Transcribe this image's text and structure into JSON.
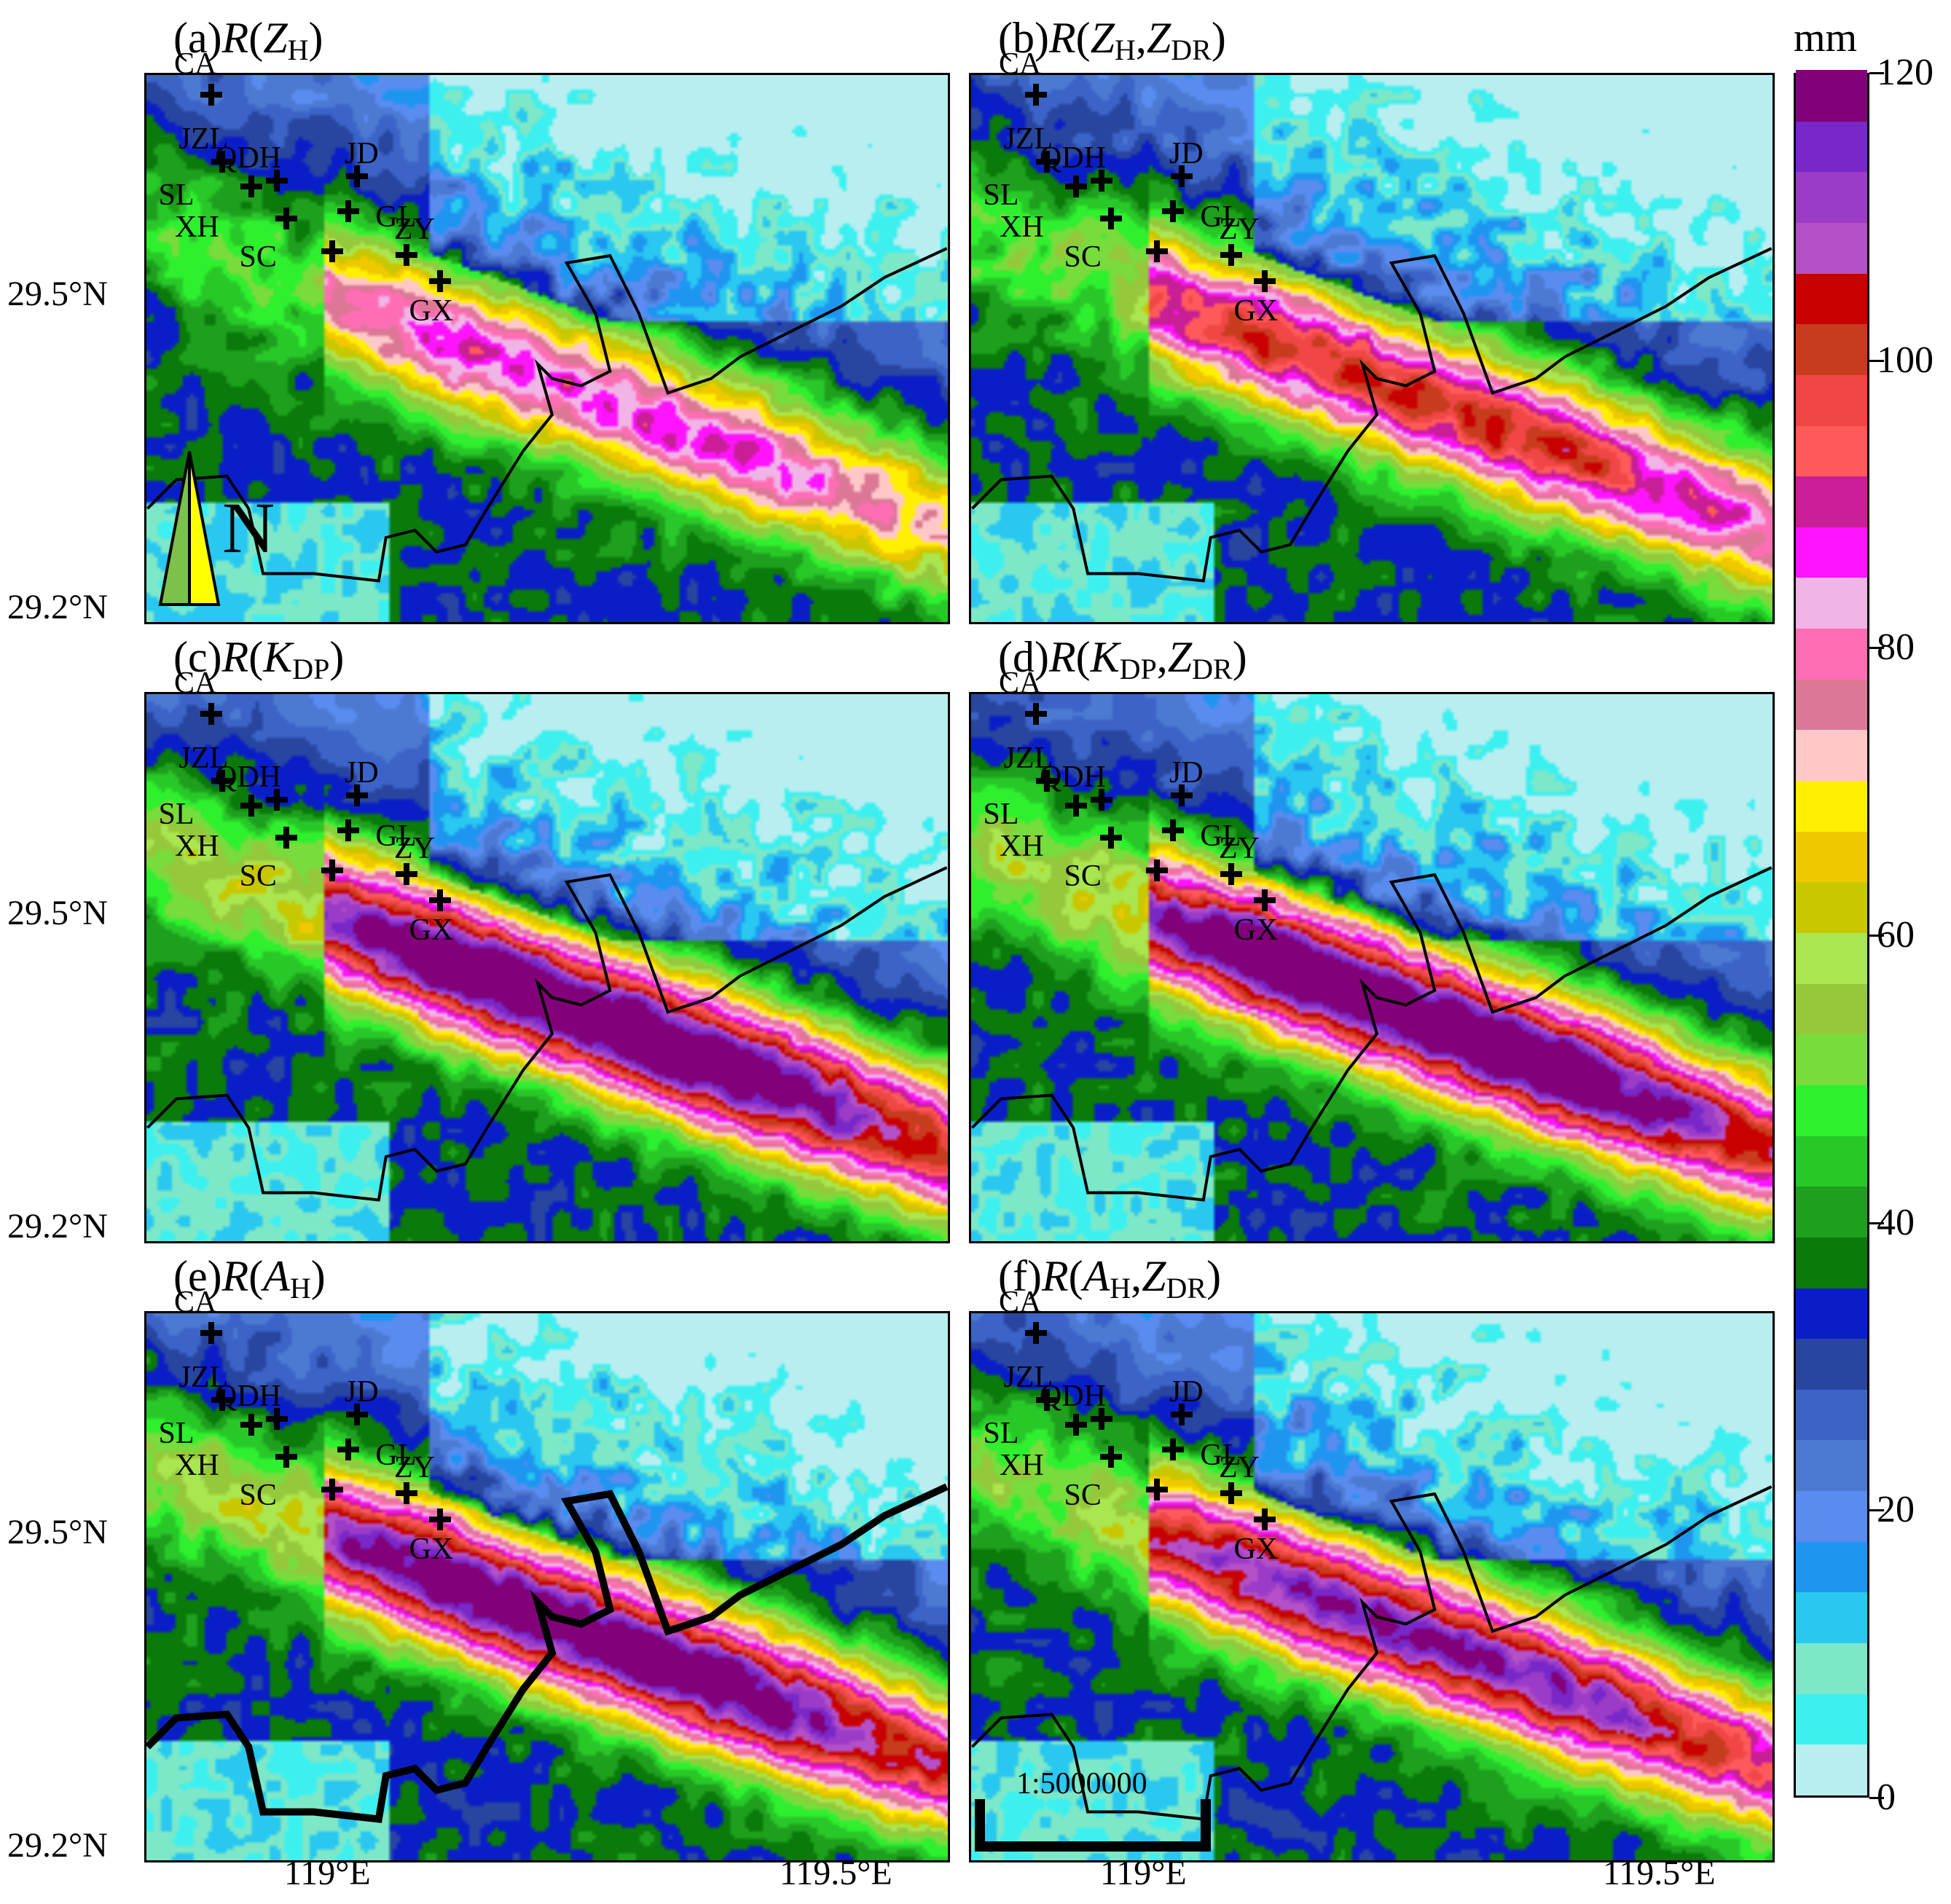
{
  "figure": {
    "panels": [
      {
        "id": "a",
        "label_prefix": "(a)",
        "func": "R",
        "arg1": "Z",
        "arg1_sub": "H",
        "arg2": "",
        "arg2_sub": "",
        "closing": ")",
        "intensity": 0.55
      },
      {
        "id": "b",
        "label_prefix": "(b)",
        "func": "R",
        "arg1": "Z",
        "arg1_sub": "H",
        "arg2": "Z",
        "arg2_sub": "DR",
        "closing": ")",
        "intensity": 0.7
      },
      {
        "id": "c",
        "label_prefix": "(c)",
        "func": "R",
        "arg1": "K",
        "arg1_sub": "DP",
        "arg2": "",
        "arg2_sub": "",
        "closing": ")",
        "intensity": 1.0
      },
      {
        "id": "d",
        "label_prefix": "(d)",
        "func": "R",
        "arg1": "K",
        "arg1_sub": "DP",
        "arg2": "Z",
        "arg2_sub": "DR",
        "closing": ")",
        "intensity": 1.0
      },
      {
        "id": "e",
        "label_prefix": "(e)",
        "func": "R",
        "arg1": "A",
        "arg1_sub": "H",
        "arg2": "",
        "arg2_sub": "",
        "closing": ")",
        "intensity": 0.95
      },
      {
        "id": "f",
        "label_prefix": "(f)",
        "func": "R",
        "arg1": "A",
        "arg1_sub": "H",
        "arg2": "Z",
        "arg2_sub": "DR",
        "closing": ")",
        "intensity": 0.85
      }
    ],
    "lat_labels": [
      "29.5°N",
      "29.2°N"
    ],
    "lon_labels": [
      "119°E",
      "119.5°E"
    ],
    "stations": [
      "CA",
      "JZL",
      "QDH",
      "JD",
      "SL",
      "XH",
      "GL",
      "SC",
      "ZY",
      "GX"
    ],
    "north_label": "N",
    "scale_label": "1:5000000"
  },
  "colorbar": {
    "unit": "mm",
    "ticks": [
      "0",
      "20",
      "40",
      "60",
      "80",
      "100",
      "120"
    ],
    "colors": [
      "#b8eef0",
      "#3cf0f0",
      "#7de8c8",
      "#28c8f0",
      "#1e96f0",
      "#5a8cf0",
      "#4c7ad2",
      "#3c64c8",
      "#2846a0",
      "#0a1ec8",
      "#0a7a0a",
      "#1ea01e",
      "#28c828",
      "#2ef02e",
      "#78dc3c",
      "#96c83c",
      "#aae650",
      "#c8c800",
      "#f0c800",
      "#fff000",
      "#ffc8c8",
      "#dc7896",
      "#ff6eb4",
      "#f0b4e6",
      "#ff14ff",
      "#c81e96",
      "#ff5a5a",
      "#f04646",
      "#c83c1e",
      "#c80000",
      "#b450c8",
      "#9b3cc8",
      "#7828c8",
      "#820078"
    ]
  },
  "labels": {
    "panel_a": "(a)R(ZH)",
    "panel_b": "(b)R(ZH,ZDR)",
    "panel_c": "(c)R(KDP)",
    "panel_d": "(d)R(KDP,ZDR)",
    "panel_e": "(e)R(AH)",
    "panel_f": "(f)R(AH,ZDR)"
  }
}
